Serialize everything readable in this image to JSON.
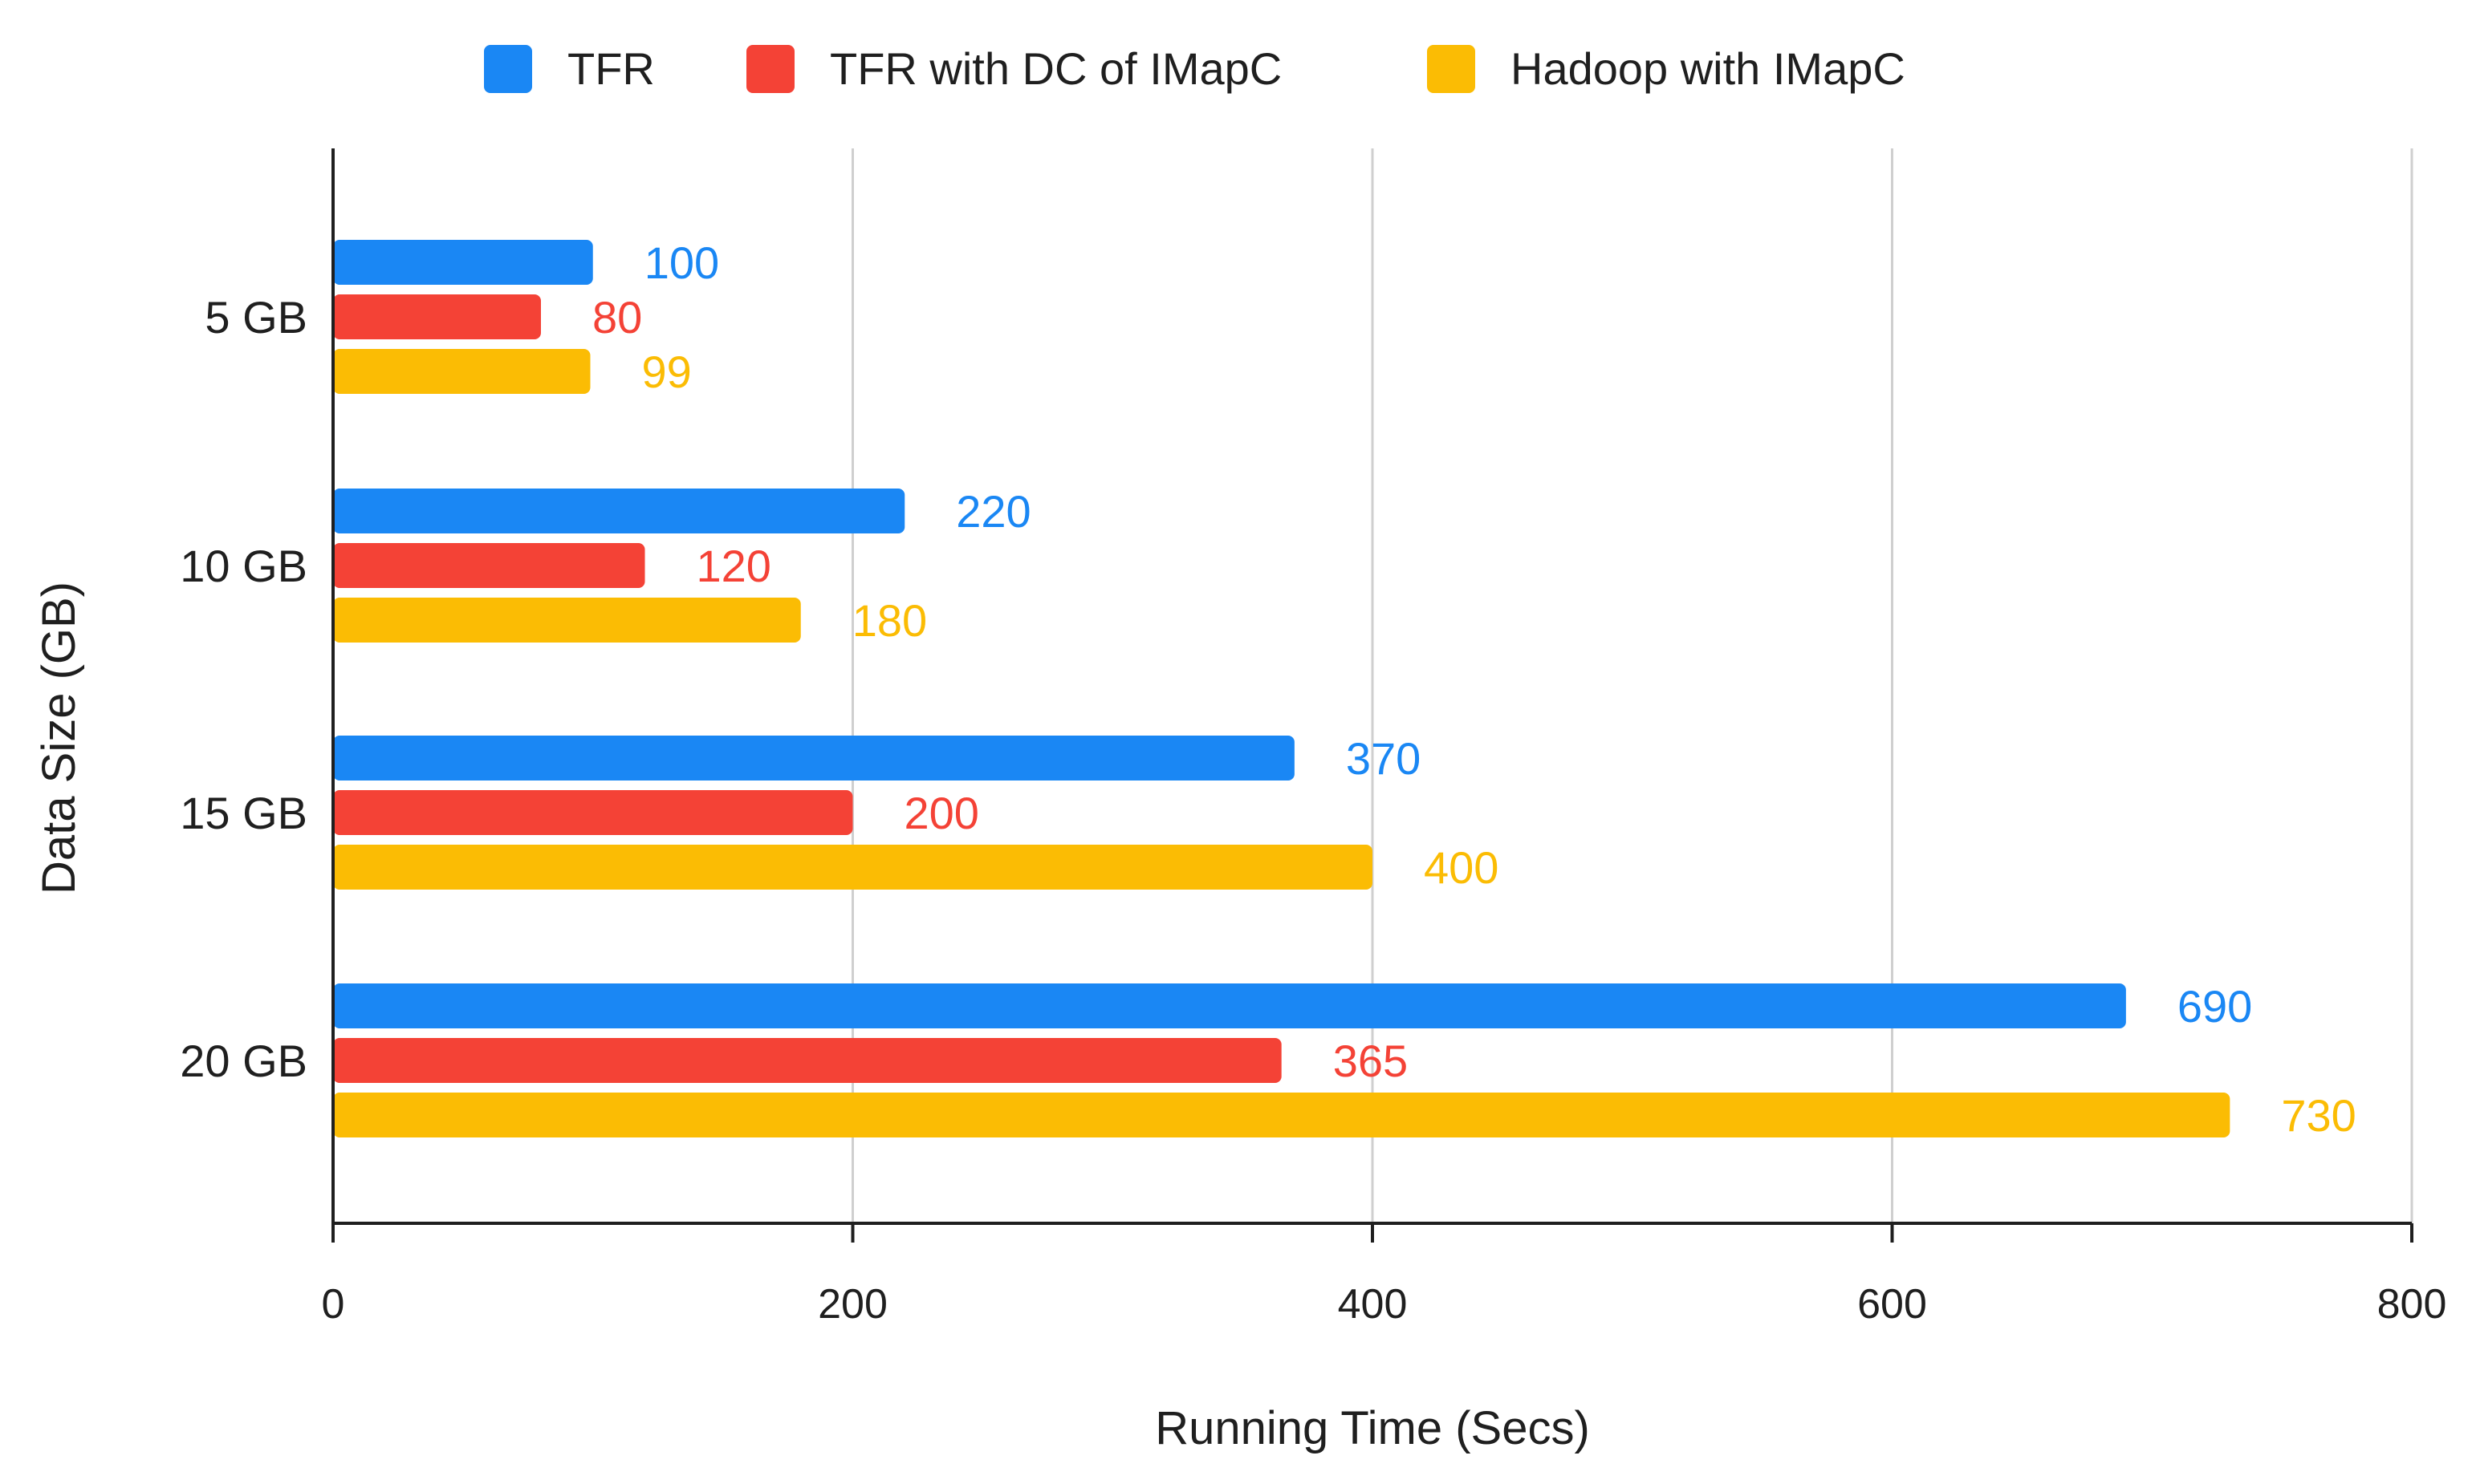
{
  "chart_data": {
    "type": "bar",
    "orientation": "horizontal",
    "title": "",
    "xlabel": "Running Time (Secs)",
    "ylabel": "Data Size (GB)",
    "xlim": [
      0,
      800
    ],
    "xticks": [
      "0",
      "200",
      "400",
      "600",
      "800"
    ],
    "xtick_values": [
      0,
      200,
      400,
      600,
      800
    ],
    "grid": true,
    "legend_position": "top-center",
    "categories": [
      "5 GB",
      "10 GB",
      "15 GB",
      "20 GB"
    ],
    "series": [
      {
        "name": "TFR",
        "color": "#1a87f4",
        "values": [
          100,
          220,
          370,
          690
        ]
      },
      {
        "name": "TFR with DC of IMapC",
        "color": "#f44236",
        "values": [
          80,
          120,
          200,
          365
        ]
      },
      {
        "name": "Hadoop with IMapC",
        "color": "#fbbc04",
        "values": [
          99,
          180,
          400,
          730
        ]
      }
    ]
  }
}
